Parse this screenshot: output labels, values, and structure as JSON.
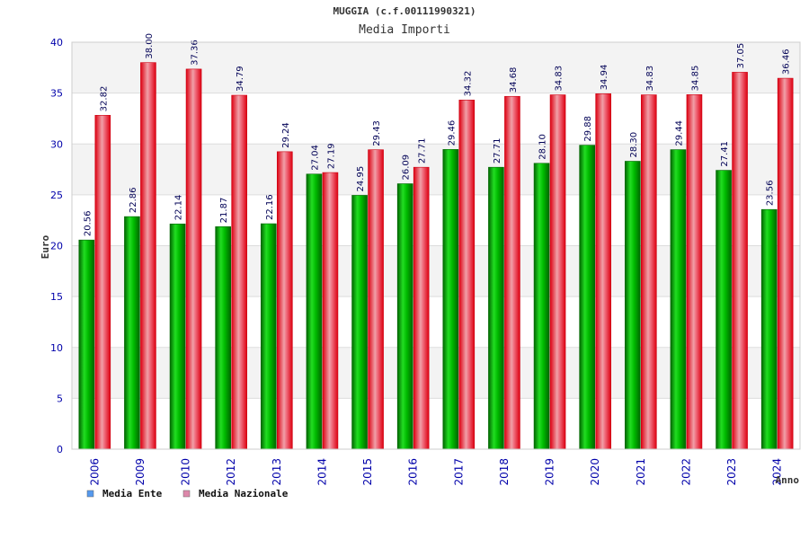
{
  "chart_data": {
    "type": "bar",
    "title": "MUGGIA (c.f.00111990321)",
    "subtitle": "Media Importi",
    "xlabel": "Anno",
    "ylabel": "Euro",
    "ylim": [
      0,
      40
    ],
    "yticks": [
      "0",
      "5",
      "10",
      "15",
      "20",
      "25",
      "30",
      "35",
      "40"
    ],
    "categories": [
      "2006",
      "2009",
      "2010",
      "2012",
      "2013",
      "2014",
      "2015",
      "2016",
      "2017",
      "2018",
      "2019",
      "2020",
      "2021",
      "2022",
      "2023",
      "2024"
    ],
    "series": [
      {
        "name": "Media Ente",
        "values": [
          20.56,
          22.86,
          22.14,
          21.87,
          22.16,
          27.04,
          24.95,
          26.09,
          29.46,
          27.71,
          28.1,
          29.88,
          28.3,
          29.44,
          27.41,
          23.56
        ],
        "labels": [
          "20.56",
          "22.86",
          "22.14",
          "21.87",
          "22.16",
          "27.04",
          "24.95",
          "26.09",
          "29.46",
          "27.71",
          "28.10",
          "29.88",
          "28.30",
          "29.44",
          "27.41",
          "23.56"
        ],
        "color": "#00aa00",
        "legend_color": "#5599ee"
      },
      {
        "name": "Media Nazionale",
        "values": [
          32.82,
          38.0,
          37.36,
          34.79,
          29.24,
          27.19,
          29.43,
          27.71,
          34.32,
          34.68,
          34.83,
          34.94,
          34.83,
          34.85,
          37.05,
          36.46
        ],
        "labels": [
          "32.82",
          "38.00",
          "37.36",
          "34.79",
          "29.24",
          "27.19",
          "29.43",
          "27.71",
          "34.32",
          "34.68",
          "34.83",
          "34.94",
          "34.83",
          "34.85",
          "37.05",
          "36.46"
        ],
        "color": "#ee1122",
        "legend_color": "#dd88aa"
      }
    ],
    "legend": "bottom-left",
    "grid": true
  }
}
